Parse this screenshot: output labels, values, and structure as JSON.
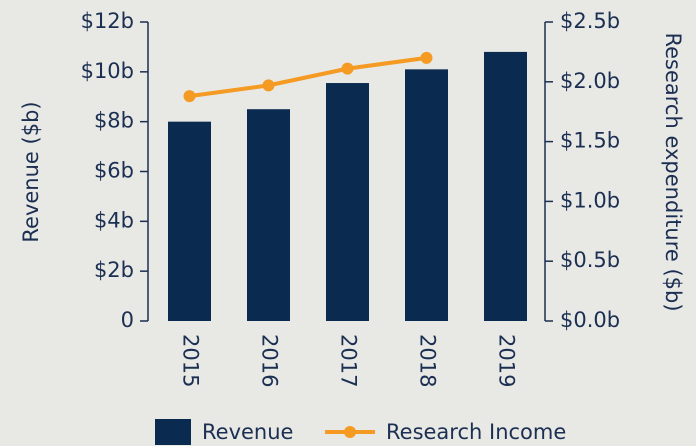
{
  "chart_data": {
    "type": "bar",
    "categories": [
      "2015",
      "2016",
      "2017",
      "2018",
      "2019"
    ],
    "series": [
      {
        "name": "Revenue",
        "type": "bar",
        "color": "#0b2a4f",
        "values": [
          8.0,
          8.5,
          9.55,
          10.1,
          10.8
        ]
      },
      {
        "name": "Research Income",
        "type": "line",
        "axis": "y2",
        "color": "#f59a23",
        "values": [
          1.88,
          1.97,
          2.11,
          2.2,
          null
        ]
      }
    ],
    "ylabel": "Revenue ($b)",
    "y2label": "Research expenditure ($b)",
    "ylim": [
      0,
      12
    ],
    "yticks": [
      0,
      {
        "value": 2,
        "label": "$2b"
      },
      {
        "value": 4,
        "label": "$4b"
      },
      {
        "value": 6,
        "label": "$6b"
      },
      {
        "value": 8,
        "label": "$8b"
      },
      {
        "value": 10,
        "label": "$10b"
      },
      {
        "value": 12,
        "label": "$12b"
      }
    ],
    "y2lim": [
      0,
      2.5
    ],
    "y2ticks": [
      {
        "value": 0,
        "label": "$0.0b"
      },
      {
        "value": 0.5,
        "label": "$0.5b"
      },
      {
        "value": 1,
        "label": "$1.0b"
      },
      {
        "value": 1.5,
        "label": "$1.5b"
      },
      {
        "value": 2,
        "label": "$2.0b"
      },
      {
        "value": 2.5,
        "label": "$2.5b"
      }
    ],
    "legend": "bottom"
  }
}
